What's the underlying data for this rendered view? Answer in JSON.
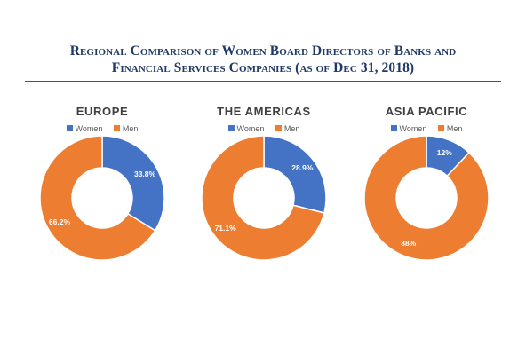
{
  "title_lines": [
    "Regional Comparison of Women Board Directors of Banks and",
    "Financial Services Companies (as of Dec 31, 2018)"
  ],
  "chart_data": [
    {
      "type": "pie",
      "title": "EUROPE",
      "categories": [
        "Women",
        "Men"
      ],
      "values": [
        33.8,
        66.2
      ],
      "labels": [
        "33.8%",
        "66.2%"
      ],
      "colors": [
        "#4472c4",
        "#ed7d31"
      ],
      "legend": "top"
    },
    {
      "type": "pie",
      "title": "THE AMERICAS",
      "categories": [
        "Women",
        "Men"
      ],
      "values": [
        28.9,
        71.1
      ],
      "labels": [
        "28.9%",
        "71.1%"
      ],
      "colors": [
        "#4472c4",
        "#ed7d31"
      ],
      "legend": "top"
    },
    {
      "type": "pie",
      "title": "ASIA PACIFIC",
      "categories": [
        "Women",
        "Men"
      ],
      "values": [
        12,
        88
      ],
      "labels": [
        "12%",
        "88%"
      ],
      "colors": [
        "#4472c4",
        "#ed7d31"
      ],
      "legend": "top"
    }
  ]
}
